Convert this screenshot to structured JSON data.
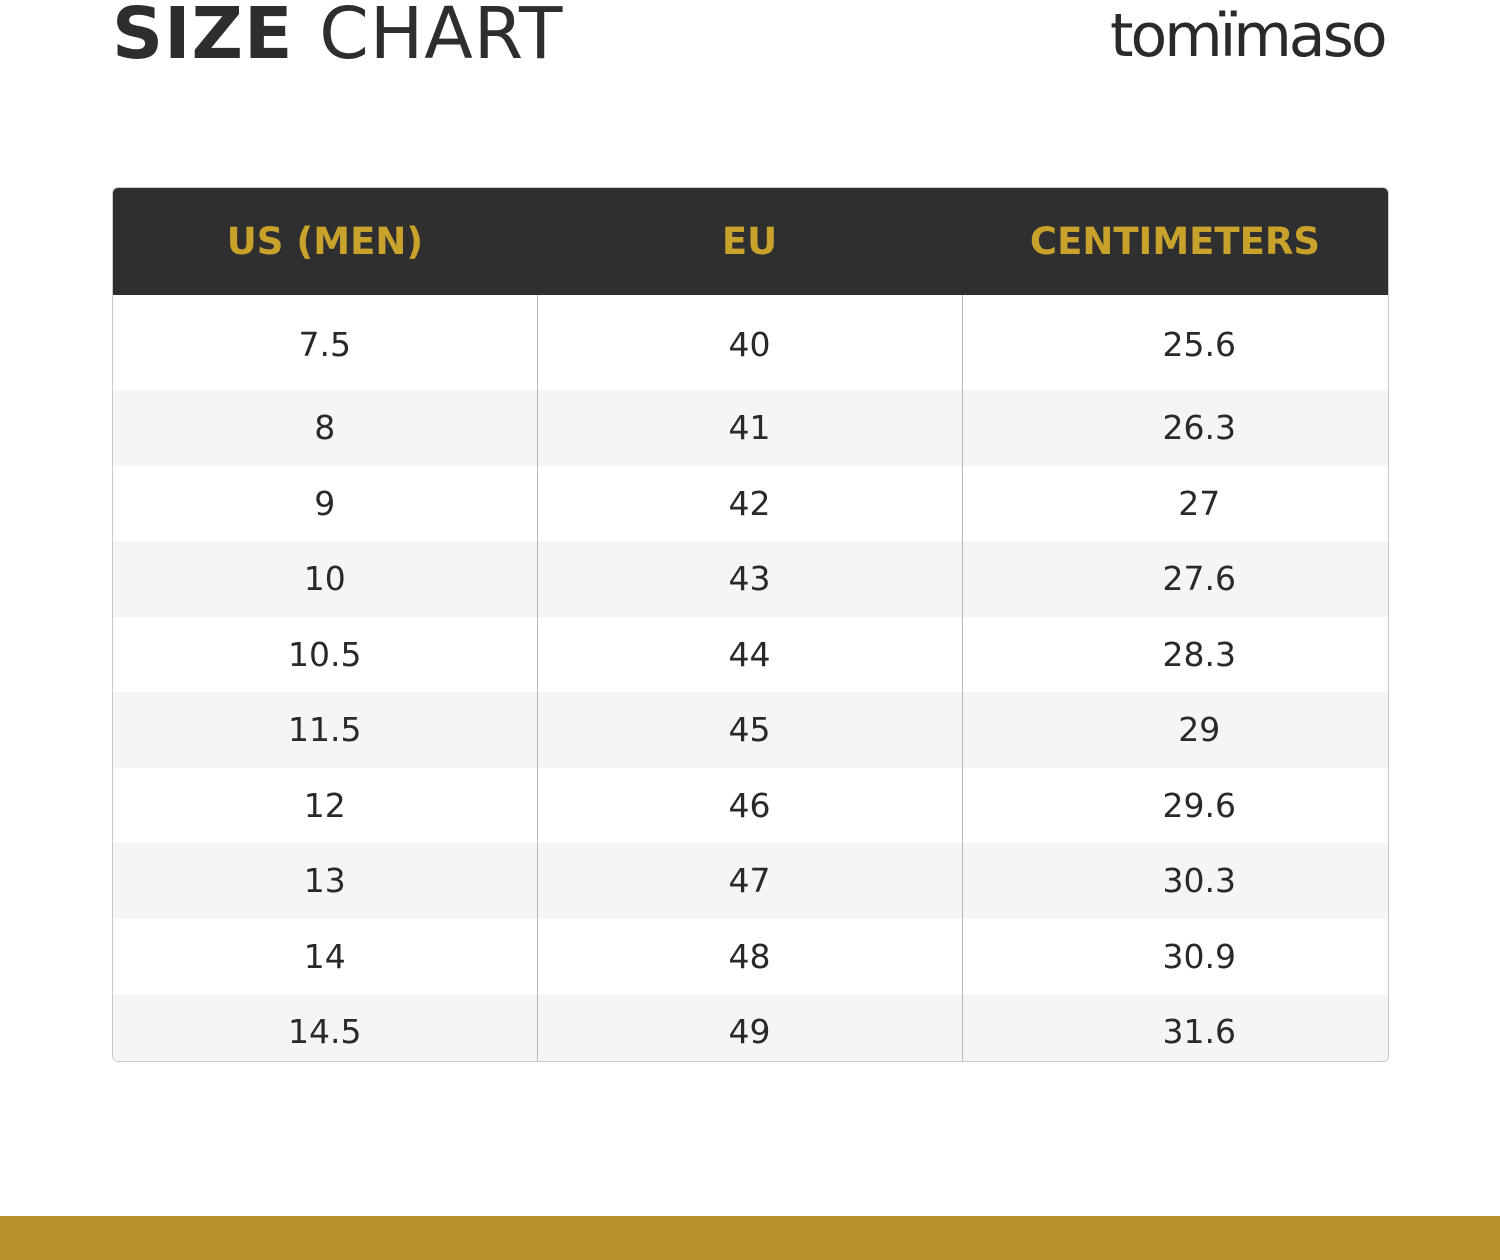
{
  "title": {
    "bold": "SIZE",
    "light": "CHART"
  },
  "brand": "tomïmaso",
  "colors": {
    "header_bg": "#302f2f",
    "header_text": "#c9a22c",
    "bottom_bar": "#b8902c"
  },
  "chart_data": {
    "type": "table",
    "columns": [
      "US (MEN)",
      "EU",
      "CENTIMETERS"
    ],
    "rows": [
      [
        "7.5",
        "40",
        "25.6"
      ],
      [
        "8",
        "41",
        "26.3"
      ],
      [
        "9",
        "42",
        "27"
      ],
      [
        "10",
        "43",
        "27.6"
      ],
      [
        "10.5",
        "44",
        "28.3"
      ],
      [
        "11.5",
        "45",
        "29"
      ],
      [
        "12",
        "46",
        "29.6"
      ],
      [
        "13",
        "47",
        "30.3"
      ],
      [
        "14",
        "48",
        "30.9"
      ],
      [
        "14.5",
        "49",
        "31.6"
      ]
    ]
  }
}
